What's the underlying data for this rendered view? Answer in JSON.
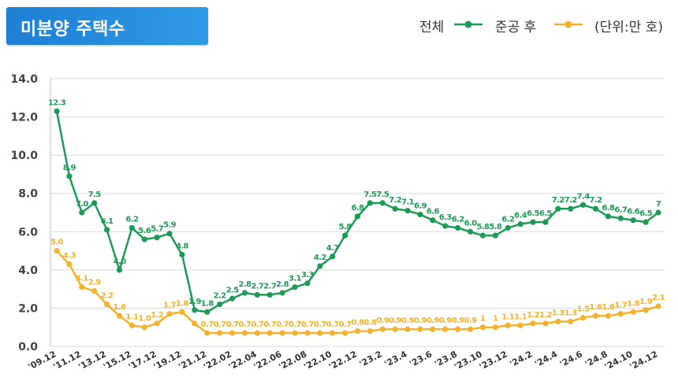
{
  "title": "미분양 주택수",
  "legend": {
    "total_label": "전체",
    "completed_label": "준공 후",
    "unit_note": "(단위:만 호)"
  },
  "colors": {
    "total": "#1e9a57",
    "completed": "#f2b22e",
    "title_bg": "#2b8fe0"
  },
  "chart_data": {
    "type": "line",
    "title": "미분양 주택수",
    "unit": "(단위:만 호)",
    "ylim": [
      0,
      14
    ],
    "yticks": [
      "0.0",
      "2.0",
      "4.0",
      "6.0",
      "8.0",
      "10.0",
      "12.0",
      "14.0"
    ],
    "grid": true,
    "legend_position": "top-right",
    "x_tick_labels": [
      "'09.12",
      "'11.12",
      "'13.12",
      "'15.12",
      "'17.12",
      "'19.12",
      "'21.12",
      "'22.02",
      "'22.04",
      "'22.06",
      "'22.08",
      "'22.10",
      "'22.12",
      "'23.2",
      "'23.4",
      "'23.6",
      "'23.8",
      "'23.10",
      "'23.12",
      "'24.2",
      "'24.4",
      "'24.6",
      "'24.8",
      "'24.10",
      "'24.12"
    ],
    "series": [
      {
        "name": "전체",
        "color": "#1e9a57",
        "values": [
          12.3,
          8.9,
          7.0,
          7.5,
          6.1,
          4.0,
          6.2,
          5.6,
          5.7,
          5.9,
          4.8,
          1.9,
          1.8,
          2.2,
          2.5,
          2.8,
          2.7,
          2.7,
          2.8,
          3.1,
          3.3,
          4.2,
          4.7,
          5.8,
          6.8,
          7.5,
          7.5,
          7.2,
          7.1,
          6.9,
          6.6,
          6.3,
          6.2,
          6.0,
          5.8,
          5.8,
          6.2,
          6.4,
          6.5,
          6.5,
          7.2,
          7.2,
          7.4,
          7.2,
          6.8,
          6.7,
          6.6,
          6.5,
          7.0
        ],
        "labels": [
          "12.3",
          "8.9",
          "7.0",
          "7.5",
          "6.1",
          "4.0",
          "6.2",
          "5.6",
          "5.7",
          "5.9",
          "4.8",
          "1.9",
          "1.8",
          "2.2",
          "2.5",
          "2.8",
          "2.7",
          "2.7",
          "2.8",
          "3.1",
          "3.3",
          "4.2",
          "4.7",
          "5.8",
          "6.8",
          "7.5",
          "7.5",
          "7.2",
          "7.1",
          "6.9",
          "6.6",
          "6.3",
          "6.2",
          "6.0",
          "5.8",
          "5.8",
          "6.2",
          "6.4",
          "6.5",
          "6.5",
          "7.2",
          "7.2",
          "7.4",
          "7.2",
          "6.8",
          "6.7",
          "6.6",
          "6.5",
          "7"
        ]
      },
      {
        "name": "준공 후",
        "color": "#f2b22e",
        "values": [
          5.0,
          4.3,
          3.1,
          2.9,
          2.2,
          1.6,
          1.1,
          1.0,
          1.2,
          1.7,
          1.8,
          1.2,
          0.7,
          0.7,
          0.7,
          0.7,
          0.7,
          0.7,
          0.7,
          0.7,
          0.7,
          0.7,
          0.7,
          0.7,
          0.8,
          0.8,
          0.9,
          0.9,
          0.9,
          0.9,
          0.9,
          0.9,
          0.9,
          0.9,
          1.0,
          1.0,
          1.1,
          1.1,
          1.2,
          1.2,
          1.3,
          1.3,
          1.5,
          1.6,
          1.6,
          1.7,
          1.8,
          1.9,
          2.1
        ],
        "labels": [
          "5.0",
          "4.3",
          "3.1",
          "2.9",
          "2.2",
          "1.6",
          "1.1",
          "1.0",
          "1.2",
          "1.7",
          "1.8",
          "",
          "0.7",
          "0.7",
          "0.7",
          "0.7",
          "0.7",
          "0.7",
          "0.7",
          "0.7",
          "0.7",
          "0.7",
          "0.7",
          "0.7",
          "0.8",
          "0.8",
          "0.9",
          "0.9",
          "0.9",
          "0.9",
          "0.9",
          "0.9",
          "0.9",
          "0.9",
          "1",
          "1",
          "1.1",
          "1.1",
          "1.2",
          "1.2",
          "1.3",
          "1.3",
          "1.5",
          "1.6",
          "1.6",
          "1.7",
          "1.8",
          "1.9",
          "2.1"
        ]
      }
    ]
  }
}
